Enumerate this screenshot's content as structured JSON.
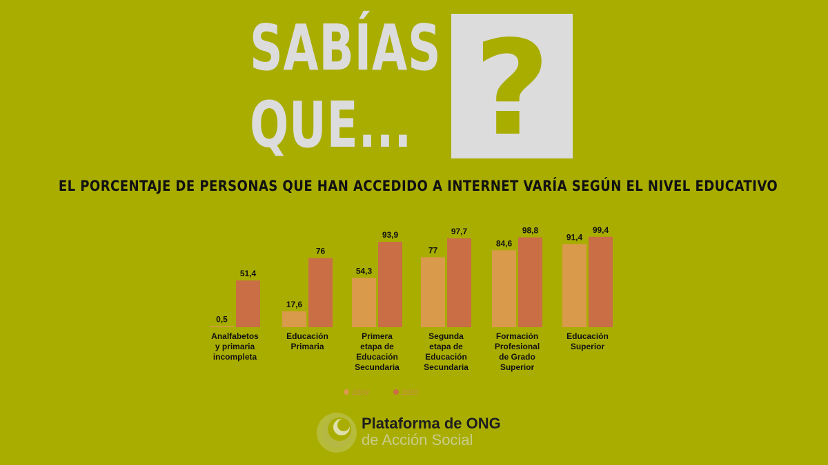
{
  "headline": {
    "line1": "SABÍAS",
    "line2": "QUE...",
    "question_mark": "?"
  },
  "subtitle": "EL PORCENTAJE DE PERSONAS QUE HAN ACCEDIDO A INTERNET VARÍA SEGÚN EL NIVEL EDUCATIVO",
  "chart_data": {
    "type": "bar",
    "categories": [
      [
        "Analfabetos",
        "y primaria",
        "incompleta"
      ],
      [
        "Educación",
        "Primaria"
      ],
      [
        "Primera",
        "etapa de",
        "Educación",
        "Secundaria"
      ],
      [
        "Segunda",
        "etapa de",
        "Educación",
        "Secundaria"
      ],
      [
        "Formación",
        "Profesional",
        "de Grado",
        "Superior"
      ],
      [
        "Educación",
        "Superior"
      ]
    ],
    "series": [
      {
        "name": "2009",
        "values": [
          0.5,
          17.6,
          54.3,
          77,
          84.6,
          91.4
        ],
        "labels": [
          "0,5",
          "17,6",
          "54,3",
          "77",
          "84,6",
          "91,4"
        ]
      },
      {
        "name": "2020",
        "values": [
          51.4,
          76,
          93.9,
          97.7,
          98.8,
          99.4
        ],
        "labels": [
          "51,4",
          "76",
          "93,9",
          "97,7",
          "98,8",
          "99,4"
        ]
      }
    ],
    "ylim": [
      0,
      100
    ],
    "colors": [
      "#d99a4b",
      "#c96e45"
    ],
    "legend_position": "bottom",
    "grid": false
  },
  "logo": {
    "line1": "Plataforma de ONG",
    "line2": "de Acción Social"
  }
}
